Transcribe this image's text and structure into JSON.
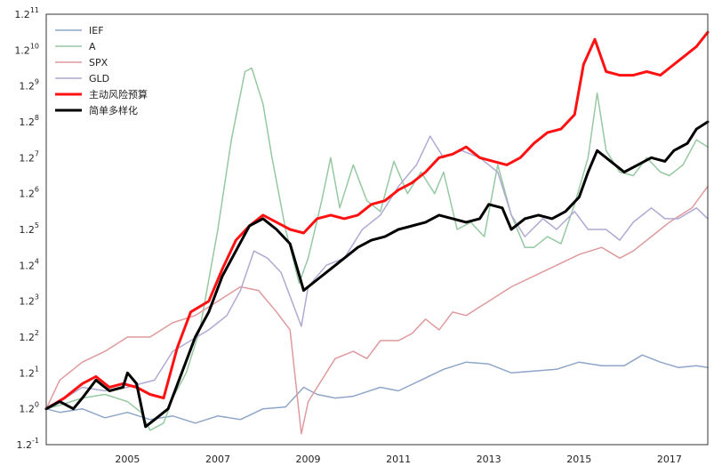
{
  "chart_data": {
    "type": "line",
    "title": "",
    "xlabel": "",
    "ylabel": "",
    "y_scale": "log2",
    "x_ticks": [
      "2005",
      "2007",
      "2009",
      "2011",
      "2013",
      "2015",
      "2017"
    ],
    "y_ticks": [
      {
        "base": "1.2",
        "exp": "-1"
      },
      {
        "base": "1.2",
        "exp": "0"
      },
      {
        "base": "1.2",
        "exp": "1"
      },
      {
        "base": "1.2",
        "exp": "2"
      },
      {
        "base": "1.2",
        "exp": "3"
      },
      {
        "base": "1.2",
        "exp": "4"
      },
      {
        "base": "1.2",
        "exp": "5"
      },
      {
        "base": "1.2",
        "exp": "6"
      },
      {
        "base": "1.2",
        "exp": "7"
      },
      {
        "base": "1.2",
        "exp": "8"
      },
      {
        "base": "1.2",
        "exp": "9"
      },
      {
        "base": "1.2",
        "exp": "10"
      },
      {
        "base": "1.2",
        "exp": "11"
      }
    ],
    "xlim": [
      2003.2,
      2017.85
    ],
    "ylim": [
      -1,
      11
    ],
    "grid": false,
    "legend_position": "top-left",
    "series": [
      {
        "name": "IEF",
        "color": "#8fa6c8",
        "width": 1.5,
        "points": [
          [
            2003.2,
            0.0
          ],
          [
            2003.5,
            -0.1
          ],
          [
            2004.0,
            0.0
          ],
          [
            2004.5,
            -0.25
          ],
          [
            2005.0,
            -0.1
          ],
          [
            2005.5,
            -0.3
          ],
          [
            2006.0,
            -0.2
          ],
          [
            2006.5,
            -0.4
          ],
          [
            2007.0,
            -0.2
          ],
          [
            2007.5,
            -0.3
          ],
          [
            2008.0,
            0.0
          ],
          [
            2008.5,
            0.05
          ],
          [
            2008.9,
            0.6
          ],
          [
            2009.2,
            0.4
          ],
          [
            2009.6,
            0.3
          ],
          [
            2010.0,
            0.35
          ],
          [
            2010.6,
            0.6
          ],
          [
            2011.0,
            0.5
          ],
          [
            2011.5,
            0.8
          ],
          [
            2012.0,
            1.1
          ],
          [
            2012.5,
            1.3
          ],
          [
            2013.0,
            1.25
          ],
          [
            2013.5,
            1.0
          ],
          [
            2014.0,
            1.05
          ],
          [
            2014.5,
            1.1
          ],
          [
            2015.0,
            1.3
          ],
          [
            2015.5,
            1.2
          ],
          [
            2016.0,
            1.2
          ],
          [
            2016.4,
            1.5
          ],
          [
            2016.8,
            1.3
          ],
          [
            2017.2,
            1.15
          ],
          [
            2017.6,
            1.2
          ],
          [
            2017.85,
            1.15
          ]
        ]
      },
      {
        "name": "A",
        "color": "#96c9a2",
        "width": 1.5,
        "points": [
          [
            2003.2,
            0.0
          ],
          [
            2003.5,
            0.1
          ],
          [
            2004.0,
            0.3
          ],
          [
            2004.5,
            0.4
          ],
          [
            2005.0,
            0.2
          ],
          [
            2005.3,
            -0.1
          ],
          [
            2005.5,
            -0.6
          ],
          [
            2005.8,
            -0.4
          ],
          [
            2006.0,
            0.3
          ],
          [
            2006.3,
            1.0
          ],
          [
            2006.6,
            2.2
          ],
          [
            2007.0,
            5.0
          ],
          [
            2007.3,
            7.5
          ],
          [
            2007.6,
            9.4
          ],
          [
            2007.75,
            9.5
          ],
          [
            2008.0,
            8.5
          ],
          [
            2008.2,
            7.0
          ],
          [
            2008.5,
            5.0
          ],
          [
            2008.8,
            3.5
          ],
          [
            2009.0,
            4.2
          ],
          [
            2009.3,
            5.8
          ],
          [
            2009.5,
            7.0
          ],
          [
            2009.7,
            5.6
          ],
          [
            2010.0,
            6.8
          ],
          [
            2010.3,
            5.8
          ],
          [
            2010.6,
            5.5
          ],
          [
            2010.9,
            6.9
          ],
          [
            2011.2,
            6.0
          ],
          [
            2011.5,
            6.6
          ],
          [
            2011.8,
            6.0
          ],
          [
            2012.0,
            6.6
          ],
          [
            2012.3,
            5.0
          ],
          [
            2012.6,
            5.2
          ],
          [
            2012.9,
            4.8
          ],
          [
            2013.2,
            6.8
          ],
          [
            2013.5,
            5.4
          ],
          [
            2013.8,
            4.5
          ],
          [
            2014.0,
            4.5
          ],
          [
            2014.3,
            4.8
          ],
          [
            2014.6,
            4.6
          ],
          [
            2014.9,
            5.7
          ],
          [
            2015.2,
            7.0
          ],
          [
            2015.4,
            8.8
          ],
          [
            2015.6,
            7.2
          ],
          [
            2015.9,
            6.6
          ],
          [
            2016.2,
            6.5
          ],
          [
            2016.5,
            7.0
          ],
          [
            2016.8,
            6.6
          ],
          [
            2017.0,
            6.5
          ],
          [
            2017.3,
            6.8
          ],
          [
            2017.6,
            7.5
          ],
          [
            2017.85,
            7.3
          ]
        ]
      },
      {
        "name": "SPX",
        "color": "#de9a9c",
        "width": 1.5,
        "points": [
          [
            2003.2,
            0.0
          ],
          [
            2003.5,
            0.8
          ],
          [
            2004.0,
            1.3
          ],
          [
            2004.5,
            1.6
          ],
          [
            2005.0,
            2.0
          ],
          [
            2005.5,
            2.0
          ],
          [
            2006.0,
            2.4
          ],
          [
            2006.5,
            2.6
          ],
          [
            2007.0,
            3.0
          ],
          [
            2007.5,
            3.4
          ],
          [
            2007.9,
            3.3
          ],
          [
            2008.3,
            2.7
          ],
          [
            2008.6,
            2.2
          ],
          [
            2008.85,
            -0.7
          ],
          [
            2009.0,
            0.2
          ],
          [
            2009.3,
            0.8
          ],
          [
            2009.6,
            1.4
          ],
          [
            2010.0,
            1.6
          ],
          [
            2010.3,
            1.4
          ],
          [
            2010.6,
            1.9
          ],
          [
            2011.0,
            1.9
          ],
          [
            2011.3,
            2.1
          ],
          [
            2011.6,
            2.5
          ],
          [
            2011.9,
            2.2
          ],
          [
            2012.2,
            2.7
          ],
          [
            2012.5,
            2.6
          ],
          [
            2013.0,
            3.0
          ],
          [
            2013.5,
            3.4
          ],
          [
            2014.0,
            3.7
          ],
          [
            2014.5,
            4.0
          ],
          [
            2015.0,
            4.3
          ],
          [
            2015.5,
            4.5
          ],
          [
            2015.9,
            4.2
          ],
          [
            2016.2,
            4.4
          ],
          [
            2016.6,
            4.8
          ],
          [
            2017.0,
            5.2
          ],
          [
            2017.5,
            5.6
          ],
          [
            2017.85,
            6.2
          ]
        ]
      },
      {
        "name": "GLD",
        "color": "#b1a9d3",
        "width": 1.5,
        "points": [
          [
            2003.2,
            0.0
          ],
          [
            2003.5,
            0.2
          ],
          [
            2004.0,
            0.6
          ],
          [
            2004.5,
            0.5
          ],
          [
            2005.0,
            0.6
          ],
          [
            2005.3,
            0.7
          ],
          [
            2005.6,
            0.8
          ],
          [
            2006.0,
            1.6
          ],
          [
            2006.4,
            1.9
          ],
          [
            2006.8,
            2.2
          ],
          [
            2007.2,
            2.6
          ],
          [
            2007.5,
            3.3
          ],
          [
            2007.8,
            4.4
          ],
          [
            2008.1,
            4.2
          ],
          [
            2008.4,
            3.8
          ],
          [
            2008.7,
            2.8
          ],
          [
            2008.85,
            2.3
          ],
          [
            2009.0,
            3.4
          ],
          [
            2009.4,
            4.0
          ],
          [
            2009.8,
            4.2
          ],
          [
            2010.2,
            5.0
          ],
          [
            2010.6,
            5.4
          ],
          [
            2011.0,
            6.2
          ],
          [
            2011.4,
            6.8
          ],
          [
            2011.7,
            7.6
          ],
          [
            2012.0,
            7.0
          ],
          [
            2012.4,
            7.2
          ],
          [
            2012.8,
            7.0
          ],
          [
            2013.2,
            6.6
          ],
          [
            2013.5,
            5.4
          ],
          [
            2013.8,
            4.8
          ],
          [
            2014.2,
            5.3
          ],
          [
            2014.5,
            5.0
          ],
          [
            2014.9,
            5.5
          ],
          [
            2015.2,
            5.0
          ],
          [
            2015.6,
            5.0
          ],
          [
            2015.9,
            4.7
          ],
          [
            2016.2,
            5.2
          ],
          [
            2016.6,
            5.6
          ],
          [
            2016.9,
            5.3
          ],
          [
            2017.2,
            5.3
          ],
          [
            2017.6,
            5.6
          ],
          [
            2017.85,
            5.3
          ]
        ]
      },
      {
        "name": "主动风险预算",
        "color": "#ff1111",
        "width": 3,
        "points": [
          [
            2003.2,
            0.0
          ],
          [
            2003.6,
            0.3
          ],
          [
            2004.0,
            0.7
          ],
          [
            2004.3,
            0.9
          ],
          [
            2004.6,
            0.6
          ],
          [
            2004.9,
            0.7
          ],
          [
            2005.2,
            0.6
          ],
          [
            2005.5,
            0.4
          ],
          [
            2005.8,
            0.3
          ],
          [
            2006.1,
            1.7
          ],
          [
            2006.4,
            2.7
          ],
          [
            2006.8,
            3.0
          ],
          [
            2007.1,
            3.9
          ],
          [
            2007.4,
            4.7
          ],
          [
            2007.7,
            5.1
          ],
          [
            2008.0,
            5.4
          ],
          [
            2008.3,
            5.2
          ],
          [
            2008.6,
            5.0
          ],
          [
            2008.9,
            4.9
          ],
          [
            2009.2,
            5.3
          ],
          [
            2009.5,
            5.4
          ],
          [
            2009.8,
            5.3
          ],
          [
            2010.1,
            5.4
          ],
          [
            2010.4,
            5.7
          ],
          [
            2010.7,
            5.8
          ],
          [
            2011.0,
            6.1
          ],
          [
            2011.3,
            6.3
          ],
          [
            2011.6,
            6.6
          ],
          [
            2011.9,
            7.0
          ],
          [
            2012.2,
            7.1
          ],
          [
            2012.5,
            7.3
          ],
          [
            2012.8,
            7.0
          ],
          [
            2013.1,
            6.9
          ],
          [
            2013.4,
            6.8
          ],
          [
            2013.7,
            7.0
          ],
          [
            2014.0,
            7.4
          ],
          [
            2014.3,
            7.7
          ],
          [
            2014.6,
            7.8
          ],
          [
            2014.9,
            8.2
          ],
          [
            2015.1,
            9.6
          ],
          [
            2015.35,
            10.3
          ],
          [
            2015.6,
            9.4
          ],
          [
            2015.9,
            9.3
          ],
          [
            2016.2,
            9.3
          ],
          [
            2016.5,
            9.4
          ],
          [
            2016.8,
            9.3
          ],
          [
            2017.0,
            9.5
          ],
          [
            2017.3,
            9.8
          ],
          [
            2017.6,
            10.1
          ],
          [
            2017.85,
            10.5
          ]
        ]
      },
      {
        "name": "简单多样化",
        "color": "#000000",
        "width": 3,
        "points": [
          [
            2003.2,
            0.0
          ],
          [
            2003.5,
            0.2
          ],
          [
            2003.8,
            0.0
          ],
          [
            2004.0,
            0.3
          ],
          [
            2004.3,
            0.8
          ],
          [
            2004.6,
            0.5
          ],
          [
            2004.9,
            0.6
          ],
          [
            2005.0,
            1.0
          ],
          [
            2005.2,
            0.7
          ],
          [
            2005.4,
            -0.5
          ],
          [
            2005.6,
            -0.3
          ],
          [
            2005.9,
            0.0
          ],
          [
            2006.2,
            1.0
          ],
          [
            2006.5,
            2.0
          ],
          [
            2006.8,
            2.7
          ],
          [
            2007.1,
            3.7
          ],
          [
            2007.4,
            4.4
          ],
          [
            2007.7,
            5.1
          ],
          [
            2008.0,
            5.3
          ],
          [
            2008.3,
            5.0
          ],
          [
            2008.6,
            4.6
          ],
          [
            2008.9,
            3.3
          ],
          [
            2009.2,
            3.6
          ],
          [
            2009.5,
            3.9
          ],
          [
            2009.8,
            4.2
          ],
          [
            2010.1,
            4.5
          ],
          [
            2010.4,
            4.7
          ],
          [
            2010.7,
            4.8
          ],
          [
            2011.0,
            5.0
          ],
          [
            2011.3,
            5.1
          ],
          [
            2011.6,
            5.2
          ],
          [
            2011.9,
            5.4
          ],
          [
            2012.2,
            5.3
          ],
          [
            2012.5,
            5.2
          ],
          [
            2012.8,
            5.3
          ],
          [
            2013.0,
            5.7
          ],
          [
            2013.3,
            5.6
          ],
          [
            2013.5,
            5.0
          ],
          [
            2013.8,
            5.3
          ],
          [
            2014.1,
            5.4
          ],
          [
            2014.4,
            5.3
          ],
          [
            2014.7,
            5.5
          ],
          [
            2015.0,
            5.9
          ],
          [
            2015.2,
            6.6
          ],
          [
            2015.4,
            7.2
          ],
          [
            2015.7,
            6.9
          ],
          [
            2016.0,
            6.6
          ],
          [
            2016.3,
            6.8
          ],
          [
            2016.6,
            7.0
          ],
          [
            2016.9,
            6.9
          ],
          [
            2017.1,
            7.2
          ],
          [
            2017.4,
            7.4
          ],
          [
            2017.6,
            7.8
          ],
          [
            2017.85,
            8.0
          ]
        ]
      }
    ]
  }
}
